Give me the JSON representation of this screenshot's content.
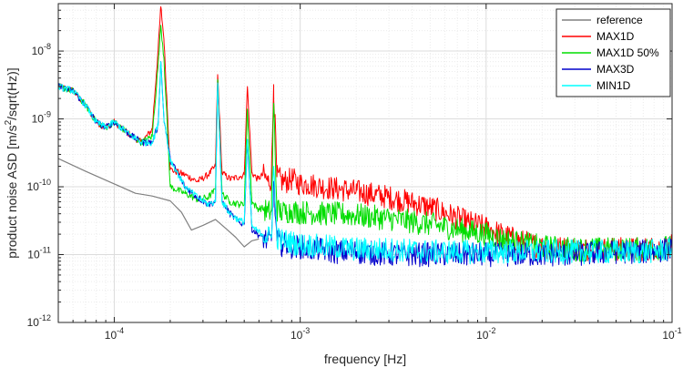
{
  "chart_data": {
    "type": "line",
    "title": "",
    "xlabel": "frequency [Hz]",
    "ylabel": "product noise ASD [m/s²/sqrt(Hz)]",
    "x_scale": "log",
    "y_scale": "log",
    "xlim": [
      5e-05,
      0.1
    ],
    "ylim": [
      1e-12,
      5e-08
    ],
    "grid": true,
    "minor_grid": true,
    "legend_location": "top-right",
    "x_ticks": [
      {
        "value": 0.0001,
        "base": "10",
        "exp": "-4"
      },
      {
        "value": 0.001,
        "base": "10",
        "exp": "-3"
      },
      {
        "value": 0.01,
        "base": "10",
        "exp": "-2"
      },
      {
        "value": 0.1,
        "base": "10",
        "exp": "-1"
      }
    ],
    "y_ticks": [
      {
        "value": 1e-12,
        "base": "10",
        "exp": "-12"
      },
      {
        "value": 1e-11,
        "base": "10",
        "exp": "-11"
      },
      {
        "value": 1e-10,
        "base": "10",
        "exp": "-10"
      },
      {
        "value": 1e-09,
        "base": "10",
        "exp": "-9"
      },
      {
        "value": 1e-08,
        "base": "10",
        "exp": "-8"
      }
    ],
    "series": [
      {
        "name": "reference",
        "color": "#808080",
        "x": [
          5e-05,
          7e-05,
          0.0001,
          0.00013,
          0.00016,
          0.0002,
          0.00023,
          0.00026,
          0.0003,
          0.00035,
          0.0004,
          0.00045,
          0.0005,
          0.00055,
          0.0006
        ],
        "y": [
          2.6e-10,
          1.7e-10,
          1.1e-10,
          8e-11,
          7.3e-11,
          6.2e-11,
          4.2e-11,
          2.3e-11,
          2.7e-11,
          3.3e-11,
          2.4e-11,
          1.8e-11,
          1.3e-11,
          1.6e-11,
          1.7e-11
        ]
      },
      {
        "name": "MAX1D",
        "color": "#ff0000",
        "x": [
          5e-05,
          6e-05,
          7e-05,
          8e-05,
          9e-05,
          0.0001,
          0.00012,
          0.00014,
          0.00016,
          0.000172,
          0.000178,
          0.000185,
          0.0002,
          0.00024,
          0.00028,
          0.00032,
          0.00035,
          0.00036,
          0.00038,
          0.00042,
          0.00047,
          0.0005,
          0.00052,
          0.00055,
          0.00059,
          0.00063,
          0.00067,
          0.0007,
          0.00072,
          0.00075,
          0.0008,
          0.00085,
          0.0009,
          0.001,
          0.0011,
          0.0013,
          0.0015,
          0.002,
          0.003,
          0.005,
          0.008,
          0.01,
          0.012,
          0.015,
          0.02,
          0.03,
          0.05,
          0.07,
          0.1
        ],
        "y": [
          3e-09,
          2.6e-09,
          1.6e-09,
          9e-10,
          7.5e-10,
          9e-10,
          6e-10,
          4.5e-10,
          7e-10,
          1e-08,
          4.5e-08,
          1.5e-08,
          1.8e-10,
          1.5e-10,
          1.2e-10,
          1.5e-10,
          2e-10,
          4.5e-09,
          1.6e-10,
          1.3e-10,
          1.4e-10,
          1.5e-10,
          3e-09,
          1.6e-10,
          1.3e-10,
          1.5e-10,
          1.2e-10,
          1.3e-10,
          3.2e-09,
          1.4e-10,
          1.2e-10,
          1.2e-10,
          1.3e-10,
          1.1e-10,
          1.1e-10,
          1e-10,
          9.5e-11,
          8.5e-11,
          7e-11,
          5e-11,
          3e-11,
          2.5e-11,
          2e-11,
          1.6e-11,
          1.3e-11,
          1.2e-11,
          1.2e-11,
          1.2e-11,
          1.3e-11
        ]
      },
      {
        "name": "MAX1D 50%",
        "color": "#00dd00",
        "x": [
          5e-05,
          6e-05,
          7e-05,
          8e-05,
          9e-05,
          0.0001,
          0.00012,
          0.00014,
          0.00016,
          0.000172,
          0.000178,
          0.000185,
          0.0002,
          0.00024,
          0.00028,
          0.00032,
          0.00035,
          0.00036,
          0.00038,
          0.00042,
          0.00047,
          0.0005,
          0.00052,
          0.00055,
          0.00059,
          0.00063,
          0.00067,
          0.0007,
          0.00072,
          0.00075,
          0.0008,
          0.00085,
          0.0009,
          0.001,
          0.0011,
          0.0013,
          0.0015,
          0.002,
          0.003,
          0.005,
          0.008,
          0.01,
          0.012,
          0.015,
          0.02,
          0.03,
          0.05,
          0.07,
          0.1
        ],
        "y": [
          3e-09,
          2.6e-09,
          1.6e-09,
          9e-10,
          7.5e-10,
          9e-10,
          6e-10,
          4.5e-10,
          5.5e-10,
          6e-09,
          2.4e-08,
          8e-09,
          1e-10,
          8e-11,
          6.5e-11,
          7e-11,
          9e-11,
          3.8e-09,
          8e-11,
          6e-11,
          5.5e-11,
          5.5e-11,
          1.4e-09,
          6e-11,
          4.8e-11,
          4.8e-11,
          4.2e-11,
          4.4e-11,
          1.7e-09,
          4.6e-11,
          4.2e-11,
          4.3e-11,
          4.4e-11,
          4.2e-11,
          4.2e-11,
          4e-11,
          4e-11,
          3.8e-11,
          3.4e-11,
          2.8e-11,
          2.2e-11,
          2e-11,
          1.7e-11,
          1.5e-11,
          1.3e-11,
          1.2e-11,
          1.2e-11,
          1.2e-11,
          1.3e-11
        ]
      },
      {
        "name": "MAX3D",
        "color": "#0000cc",
        "x": [
          5e-05,
          6e-05,
          7e-05,
          8e-05,
          9e-05,
          0.0001,
          0.00012,
          0.00014,
          0.00016,
          0.000172,
          0.000178,
          0.000185,
          0.0002,
          0.00024,
          0.00028,
          0.00032,
          0.00035,
          0.00036,
          0.00038,
          0.00042,
          0.00047,
          0.0005,
          0.00052,
          0.00055,
          0.00059,
          0.00063,
          0.00067,
          0.0007,
          0.00072,
          0.00075,
          0.0008,
          0.00085,
          0.0009,
          0.001,
          0.0011,
          0.0013,
          0.0015,
          0.002,
          0.003,
          0.005,
          0.008,
          0.01,
          0.012,
          0.015,
          0.02,
          0.03,
          0.05,
          0.07,
          0.1
        ],
        "y": [
          3e-09,
          2.6e-09,
          1.6e-09,
          9e-10,
          7.5e-10,
          9e-10,
          6e-10,
          4.5e-10,
          4.5e-10,
          8e-10,
          7e-09,
          1e-09,
          2.5e-10,
          1e-10,
          7e-11,
          5.5e-11,
          6e-11,
          3.4e-09,
          6e-11,
          4e-11,
          3e-11,
          2.8e-11,
          5e-10,
          2.4e-11,
          2e-11,
          1.8e-11,
          1.6e-11,
          1.6e-11,
          1.2e-10,
          1.6e-11,
          1.4e-11,
          1.4e-11,
          1.3e-11,
          1.3e-11,
          1.2e-11,
          1.2e-11,
          1.1e-11,
          1.1e-11,
          1e-11,
          1e-11,
          1e-11,
          1e-11,
          1e-11,
          1e-11,
          1e-11,
          1e-11,
          1.1e-11,
          1.1e-11,
          1.2e-11
        ]
      },
      {
        "name": "MIN1D",
        "color": "#00ffff",
        "x": [
          5e-05,
          6e-05,
          7e-05,
          8e-05,
          9e-05,
          0.0001,
          0.00012,
          0.00014,
          0.00016,
          0.000172,
          0.000178,
          0.000185,
          0.0002,
          0.00024,
          0.00028,
          0.00032,
          0.00035,
          0.00036,
          0.00038,
          0.00042,
          0.00047,
          0.0005,
          0.00052,
          0.00055,
          0.00059,
          0.00063,
          0.00067,
          0.0007,
          0.00072,
          0.00075,
          0.0008,
          0.00085,
          0.0009,
          0.001,
          0.0011,
          0.0013,
          0.0015,
          0.002,
          0.003,
          0.005,
          0.008,
          0.01,
          0.012,
          0.015,
          0.02,
          0.03,
          0.05,
          0.07,
          0.1
        ],
        "y": [
          3e-09,
          2.6e-09,
          1.6e-09,
          9e-10,
          7.5e-10,
          9e-10,
          6e-10,
          4.5e-10,
          4.5e-10,
          8e-10,
          7e-09,
          1e-09,
          2.5e-10,
          1e-10,
          7e-11,
          5.5e-11,
          6e-11,
          3.4e-09,
          6e-11,
          4e-11,
          3.2e-11,
          3e-11,
          5e-10,
          2.6e-11,
          2.2e-11,
          2e-11,
          1.8e-11,
          1.8e-11,
          2e-10,
          1.8e-11,
          1.6e-11,
          1.6e-11,
          1.5e-11,
          1.4e-11,
          1.4e-11,
          1.3e-11,
          1.3e-11,
          1.2e-11,
          1.2e-11,
          1.1e-11,
          1.1e-11,
          1.1e-11,
          1.1e-11,
          1.1e-11,
          1.1e-11,
          1.1e-11,
          1.1e-11,
          1.1e-11,
          1.2e-11
        ]
      }
    ]
  }
}
